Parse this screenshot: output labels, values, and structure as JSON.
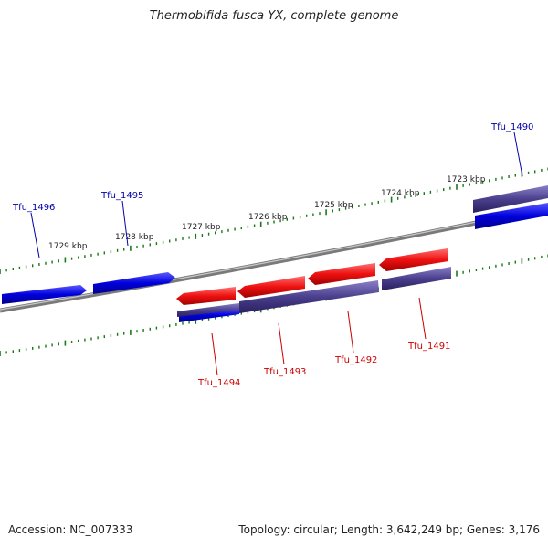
{
  "title": "Thermobifida fusca YX, complete genome",
  "footer": {
    "accession": "Accession: NC_007333",
    "summary": "Topology: circular; Length: 3,642,249 bp; Genes: 3,176"
  },
  "colors": {
    "forward_gene": "#0000dd",
    "reverse_gene": "#ee1111",
    "reverse_cds": "#4a3f8c",
    "forward_cds": "#4a3f8c",
    "backbone": "#888888",
    "tick": "#1a7a1a",
    "forward_label": "#0000aa",
    "reverse_label": "#cc0000"
  },
  "kbp_ticks": [
    {
      "label": "1729 kbp",
      "kbp": 1729
    },
    {
      "label": "1728 kbp",
      "kbp": 1728
    },
    {
      "label": "1727 kbp",
      "kbp": 1727
    },
    {
      "label": "1726 kbp",
      "kbp": 1726
    },
    {
      "label": "1725 kbp",
      "kbp": 1725
    },
    {
      "label": "1724 kbp",
      "kbp": 1724
    },
    {
      "label": "1723 kbp",
      "kbp": 1723
    }
  ],
  "genes_forward": [
    {
      "id": "Tfu_1496"
    },
    {
      "id": "Tfu_1495"
    },
    {
      "id": "Tfu_1490"
    }
  ],
  "genes_reverse": [
    {
      "id": "Tfu_1494"
    },
    {
      "id": "Tfu_1493"
    },
    {
      "id": "Tfu_1492"
    },
    {
      "id": "Tfu_1491"
    }
  ]
}
